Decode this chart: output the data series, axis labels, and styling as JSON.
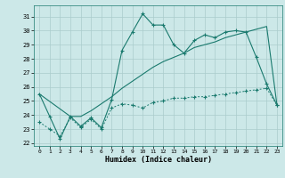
{
  "title": "",
  "xlabel": "Humidex (Indice chaleur)",
  "bg_color": "#cce8e8",
  "line_color": "#1a7a6e",
  "grid_color": "#aacccc",
  "xlim": [
    -0.5,
    23.5
  ],
  "ylim": [
    21.8,
    31.8
  ],
  "xticks": [
    0,
    1,
    2,
    3,
    4,
    5,
    6,
    7,
    8,
    9,
    10,
    11,
    12,
    13,
    14,
    15,
    16,
    17,
    18,
    19,
    20,
    21,
    22,
    23
  ],
  "yticks": [
    22,
    23,
    24,
    25,
    26,
    27,
    28,
    29,
    30,
    31
  ],
  "series1_x": [
    0,
    1,
    2,
    3,
    4,
    5,
    6,
    7,
    8,
    9,
    10,
    11,
    12,
    13,
    14,
    15,
    16,
    17,
    18,
    19,
    20,
    21,
    22,
    23
  ],
  "series1_y": [
    25.5,
    23.9,
    22.3,
    23.9,
    23.2,
    23.8,
    23.1,
    25.1,
    28.6,
    29.9,
    31.2,
    30.4,
    30.4,
    29.0,
    28.4,
    29.3,
    29.7,
    29.5,
    29.9,
    30.0,
    29.9,
    28.1,
    26.2,
    24.7
  ],
  "series2_x": [
    0,
    1,
    2,
    3,
    4,
    5,
    6,
    7,
    8,
    9,
    10,
    11,
    12,
    13,
    14,
    15,
    16,
    17,
    18,
    19,
    20,
    21,
    22,
    23
  ],
  "series2_y": [
    23.5,
    23.0,
    22.5,
    23.8,
    23.1,
    23.7,
    23.0,
    24.5,
    24.8,
    24.7,
    24.5,
    24.9,
    25.0,
    25.2,
    25.2,
    25.3,
    25.3,
    25.4,
    25.5,
    25.6,
    25.7,
    25.8,
    25.9,
    24.7
  ],
  "series3_x": [
    0,
    3,
    4,
    5,
    6,
    7,
    8,
    9,
    10,
    11,
    12,
    13,
    14,
    15,
    16,
    17,
    18,
    19,
    20,
    21,
    22,
    23
  ],
  "series3_y": [
    25.5,
    23.9,
    23.9,
    24.3,
    24.8,
    25.3,
    25.9,
    26.4,
    26.9,
    27.4,
    27.8,
    28.1,
    28.4,
    28.8,
    29.0,
    29.2,
    29.5,
    29.7,
    29.9,
    30.1,
    30.3,
    24.7
  ]
}
